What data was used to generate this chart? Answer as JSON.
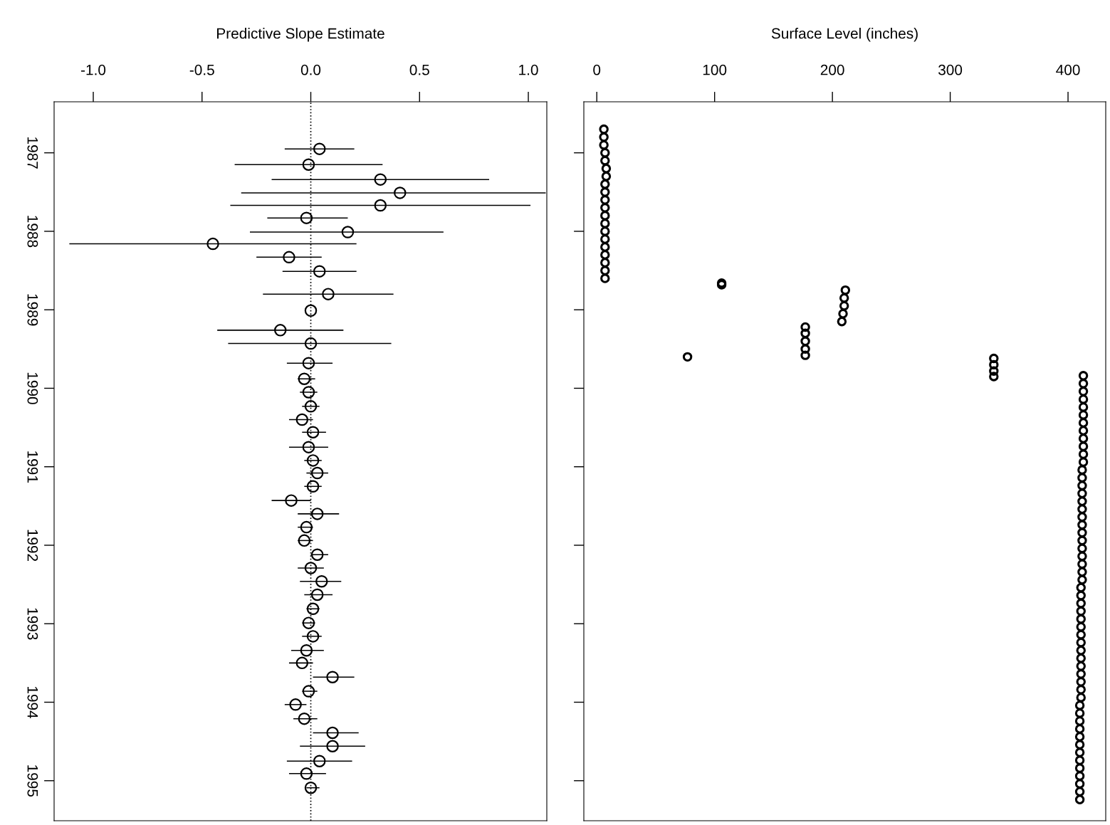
{
  "chart_data": [
    {
      "type": "scatter",
      "xlabel": "Predictive Slope Estimate",
      "xlim": [
        -1.18,
        1.085
      ],
      "xticks": [
        {
          "value": -1.0,
          "label": "-1.0"
        },
        {
          "value": -0.5,
          "label": "-0.5"
        },
        {
          "value": 0.0,
          "label": "0.0"
        },
        {
          "value": 0.5,
          "label": "0.5"
        },
        {
          "value": 1.0,
          "label": "1.0"
        }
      ],
      "ylim": [
        1995.51,
        1986.35
      ],
      "yticks": [
        1987,
        1988,
        1989,
        1990,
        1991,
        1992,
        1993,
        1994,
        1995
      ],
      "marker": "circle",
      "grid": false,
      "ref_lines": [
        {
          "axis": "x",
          "value": 0,
          "color": "#000000",
          "line_style": "dotted"
        }
      ],
      "series": [
        {
          "color": "#000000",
          "x": [
            0.04,
            -0.01,
            0.32,
            0.41,
            0.32,
            -0.02,
            0.17,
            -0.45,
            -0.1,
            0.04,
            0.08,
            0.0,
            -0.14,
            0.0,
            -0.01,
            -0.03,
            -0.01,
            0.0,
            -0.04,
            0.01,
            -0.01,
            0.01,
            0.03,
            0.01,
            -0.09,
            0.03,
            -0.02,
            -0.03,
            0.03,
            0.0,
            0.05,
            0.03,
            0.01,
            -0.01,
            0.01,
            -0.02,
            -0.04,
            0.1,
            -0.01,
            -0.07,
            -0.03,
            0.1,
            0.1,
            0.04,
            -0.02,
            0.0
          ],
          "values": [
            1986.95,
            1987.15,
            1987.34,
            1987.51,
            1987.67,
            1987.83,
            1988.01,
            1988.16,
            1988.33,
            1988.51,
            1988.8,
            1989.01,
            1989.26,
            1989.43,
            1989.68,
            1989.88,
            1990.05,
            1990.23,
            1990.4,
            1990.56,
            1990.75,
            1990.92,
            1991.08,
            1991.25,
            1991.43,
            1991.6,
            1991.77,
            1991.94,
            1992.12,
            1992.29,
            1992.46,
            1992.63,
            1992.81,
            1992.99,
            1993.16,
            1993.34,
            1993.5,
            1993.68,
            1993.86,
            1994.03,
            1994.21,
            1994.39,
            1994.56,
            1994.75,
            1994.91,
            1995.09
          ],
          "xerrors": [
            [
              -0.12,
              0.2
            ],
            [
              -0.35,
              0.33
            ],
            [
              -0.18,
              0.82
            ],
            [
              -0.32,
              1.08
            ],
            [
              -0.37,
              1.01
            ],
            [
              -0.2,
              0.17
            ],
            [
              -0.28,
              0.61
            ],
            [
              -1.11,
              0.21
            ],
            [
              -0.25,
              0.05
            ],
            [
              -0.13,
              0.21
            ],
            [
              -0.22,
              0.38
            ],
            null,
            [
              -0.43,
              0.15
            ],
            [
              -0.38,
              0.37
            ],
            [
              -0.11,
              0.1
            ],
            [
              -0.06,
              0.02
            ],
            [
              -0.05,
              0.03
            ],
            [
              -0.04,
              0.04
            ],
            [
              -0.1,
              0.01
            ],
            [
              -0.04,
              0.07
            ],
            [
              -0.1,
              0.08
            ],
            [
              -0.03,
              0.05
            ],
            [
              -0.02,
              0.08
            ],
            [
              -0.03,
              0.05
            ],
            [
              -0.18,
              0.0
            ],
            [
              -0.06,
              0.13
            ],
            [
              -0.06,
              0.01
            ],
            [
              -0.06,
              0.01
            ],
            [
              0.0,
              0.08
            ],
            [
              -0.06,
              0.06
            ],
            [
              -0.05,
              0.14
            ],
            [
              -0.03,
              0.1
            ],
            [
              -0.02,
              0.04
            ],
            [
              -0.04,
              0.02
            ],
            [
              -0.04,
              0.05
            ],
            [
              -0.09,
              0.06
            ],
            [
              -0.1,
              0.01
            ],
            [
              0.01,
              0.2
            ],
            [
              -0.04,
              0.03
            ],
            [
              -0.12,
              -0.02
            ],
            [
              -0.08,
              0.03
            ],
            [
              0.01,
              0.22
            ],
            [
              -0.05,
              0.25
            ],
            [
              -0.11,
              0.19
            ],
            [
              -0.1,
              0.07
            ],
            [
              -0.02,
              0.04
            ]
          ]
        }
      ]
    },
    {
      "type": "scatter",
      "xlabel": "Surface Level (inches)",
      "xlim": [
        -11,
        432
      ],
      "xticks": [
        0,
        100,
        200,
        300,
        400
      ],
      "ylim": [
        1995.51,
        1986.35
      ],
      "yticks": [
        1987,
        1988,
        1989,
        1990,
        1991,
        1992,
        1993,
        1994,
        1995
      ],
      "tick_labels": "x",
      "marker": "circle",
      "grid": false,
      "series": [
        {
          "color": "#000000",
          "x": [
            6,
            6,
            6,
            7,
            7,
            8,
            8,
            7,
            7,
            7,
            7,
            7,
            7,
            7,
            7,
            7,
            7,
            7,
            7,
            7,
            106,
            106,
            211,
            210,
            210,
            209,
            208,
            177,
            177,
            177,
            177,
            177,
            77,
            337,
            337,
            337,
            337,
            413,
            413,
            413,
            413,
            413,
            413,
            413,
            413,
            413,
            413,
            413,
            413,
            412,
            412,
            412,
            412,
            412,
            412,
            412,
            412,
            412,
            412,
            412,
            412,
            412,
            412,
            412,
            411,
            411,
            411,
            411,
            411,
            411,
            411,
            411,
            411,
            411,
            411,
            411,
            411,
            411,
            411,
            410,
            410,
            410,
            410,
            410,
            410,
            410,
            410,
            410,
            410,
            410,
            410,
            410
          ],
          "values": [
            1986.7,
            1986.8,
            1986.9,
            1987.0,
            1987.1,
            1987.2,
            1987.3,
            1987.4,
            1987.5,
            1987.6,
            1987.7,
            1987.8,
            1987.9,
            1988.0,
            1988.1,
            1988.2,
            1988.3,
            1988.4,
            1988.5,
            1988.6,
            1988.66,
            1988.68,
            1988.75,
            1988.85,
            1988.95,
            1989.05,
            1989.15,
            1989.22,
            1989.3,
            1989.4,
            1989.5,
            1989.58,
            1989.6,
            1989.62,
            1989.7,
            1989.78,
            1989.85,
            1989.84,
            1989.94,
            1990.04,
            1990.14,
            1990.24,
            1990.34,
            1990.44,
            1990.54,
            1990.64,
            1990.74,
            1990.84,
            1990.94,
            1991.04,
            1991.14,
            1991.24,
            1991.34,
            1991.44,
            1991.54,
            1991.64,
            1991.74,
            1991.84,
            1991.94,
            1992.04,
            1992.14,
            1992.24,
            1992.34,
            1992.44,
            1992.54,
            1992.64,
            1992.74,
            1992.84,
            1992.94,
            1993.04,
            1993.14,
            1993.24,
            1993.34,
            1993.44,
            1993.54,
            1993.64,
            1993.74,
            1993.84,
            1993.94,
            1994.04,
            1994.14,
            1994.24,
            1994.34,
            1994.44,
            1994.54,
            1994.64,
            1994.74,
            1994.84,
            1994.94,
            1995.04,
            1995.14,
            1995.24
          ]
        }
      ]
    }
  ]
}
